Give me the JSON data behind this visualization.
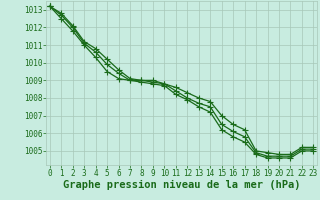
{
  "x": [
    0,
    1,
    2,
    3,
    4,
    5,
    6,
    7,
    8,
    9,
    10,
    11,
    12,
    13,
    14,
    15,
    16,
    17,
    18,
    19,
    20,
    21,
    22,
    23
  ],
  "line1": [
    1013.2,
    1012.8,
    1012.1,
    1011.2,
    1010.8,
    1010.2,
    1009.6,
    1009.1,
    1009.0,
    1009.0,
    1008.8,
    1008.6,
    1008.3,
    1008.0,
    1007.8,
    1007.0,
    1006.5,
    1006.2,
    1005.0,
    1004.9,
    1004.8,
    1004.8,
    1005.2,
    1005.2
  ],
  "line2": [
    1013.2,
    1012.7,
    1012.0,
    1011.1,
    1010.6,
    1009.9,
    1009.4,
    1009.0,
    1009.0,
    1008.9,
    1008.8,
    1008.4,
    1008.0,
    1007.7,
    1007.5,
    1006.5,
    1006.1,
    1005.8,
    1004.9,
    1004.7,
    1004.7,
    1004.7,
    1005.1,
    1005.1
  ],
  "line3": [
    1013.2,
    1012.5,
    1011.8,
    1011.0,
    1010.3,
    1009.5,
    1009.1,
    1009.0,
    1008.9,
    1008.8,
    1008.7,
    1008.2,
    1007.9,
    1007.5,
    1007.2,
    1006.2,
    1005.8,
    1005.5,
    1004.8,
    1004.6,
    1004.6,
    1004.6,
    1005.0,
    1005.0
  ],
  "line_color": "#1a6b1a",
  "bg_color": "#c8ece0",
  "grid_color": "#a8c8b8",
  "xlabel": "Graphe pression niveau de la mer (hPa)",
  "ylim": [
    1004.2,
    1013.5
  ],
  "yticks": [
    1005,
    1006,
    1007,
    1008,
    1009,
    1010,
    1011,
    1012,
    1013
  ],
  "xlim": [
    -0.3,
    23.3
  ],
  "xticks": [
    0,
    1,
    2,
    3,
    4,
    5,
    6,
    7,
    8,
    9,
    10,
    11,
    12,
    13,
    14,
    15,
    16,
    17,
    18,
    19,
    20,
    21,
    22,
    23
  ],
  "marker": "+",
  "markersize": 4,
  "linewidth": 0.9,
  "xlabel_fontsize": 7.5,
  "tick_fontsize": 5.5
}
